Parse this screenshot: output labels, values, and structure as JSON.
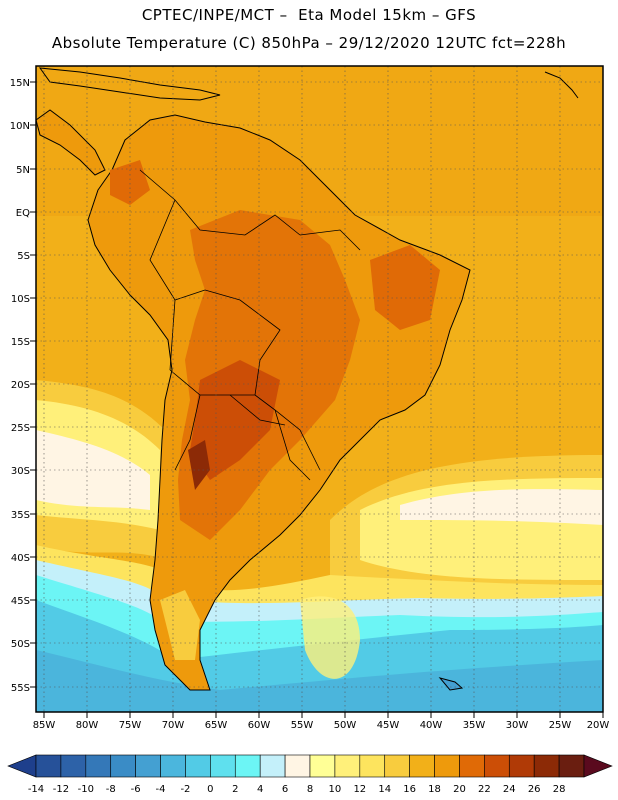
{
  "header": {
    "line1": "CPTEC/INPE/MCT –  Eta Model 15km – GFS",
    "line2": "Absolute Temperature (C) 850hPa – 29/12/2020 12UTC fct=228h"
  },
  "map": {
    "lat_labels": [
      "15N",
      "10N",
      "5N",
      "EQ",
      "5S",
      "10S",
      "15S",
      "20S",
      "25S",
      "30S",
      "35S",
      "40S",
      "45S",
      "50S",
      "55S"
    ],
    "lon_labels": [
      "85W",
      "80W",
      "75W",
      "70W",
      "65W",
      "60W",
      "55W",
      "50W",
      "45W",
      "40W",
      "35W",
      "30W",
      "25W",
      "20W"
    ],
    "lat_range": [
      17.5,
      -58
    ],
    "lon_range": [
      -86,
      -20
    ]
  },
  "colorbar": {
    "labels": [
      "-14",
      "-12",
      "-10",
      "-8",
      "-6",
      "-4",
      "-2",
      "0",
      "2",
      "4",
      "6",
      "8",
      "10",
      "12",
      "14",
      "16",
      "18",
      "20",
      "22",
      "24",
      "26",
      "28"
    ],
    "colors": [
      "#1e3f8c",
      "#265199",
      "#2d62a8",
      "#3478b8",
      "#3a8cc6",
      "#44a0d2",
      "#4bb6dd",
      "#52cbe6",
      "#5fe0ee",
      "#6cf5f5",
      "#c4f0fa",
      "#fff5e4",
      "#ffff96",
      "#fff07a",
      "#fde45e",
      "#f8cc3e",
      "#f2b019",
      "#ee9a0c",
      "#e06a06",
      "#cc4e06",
      "#b03a06",
      "#8c2a06",
      "#6a1e10",
      "#5a0a1e"
    ]
  }
}
